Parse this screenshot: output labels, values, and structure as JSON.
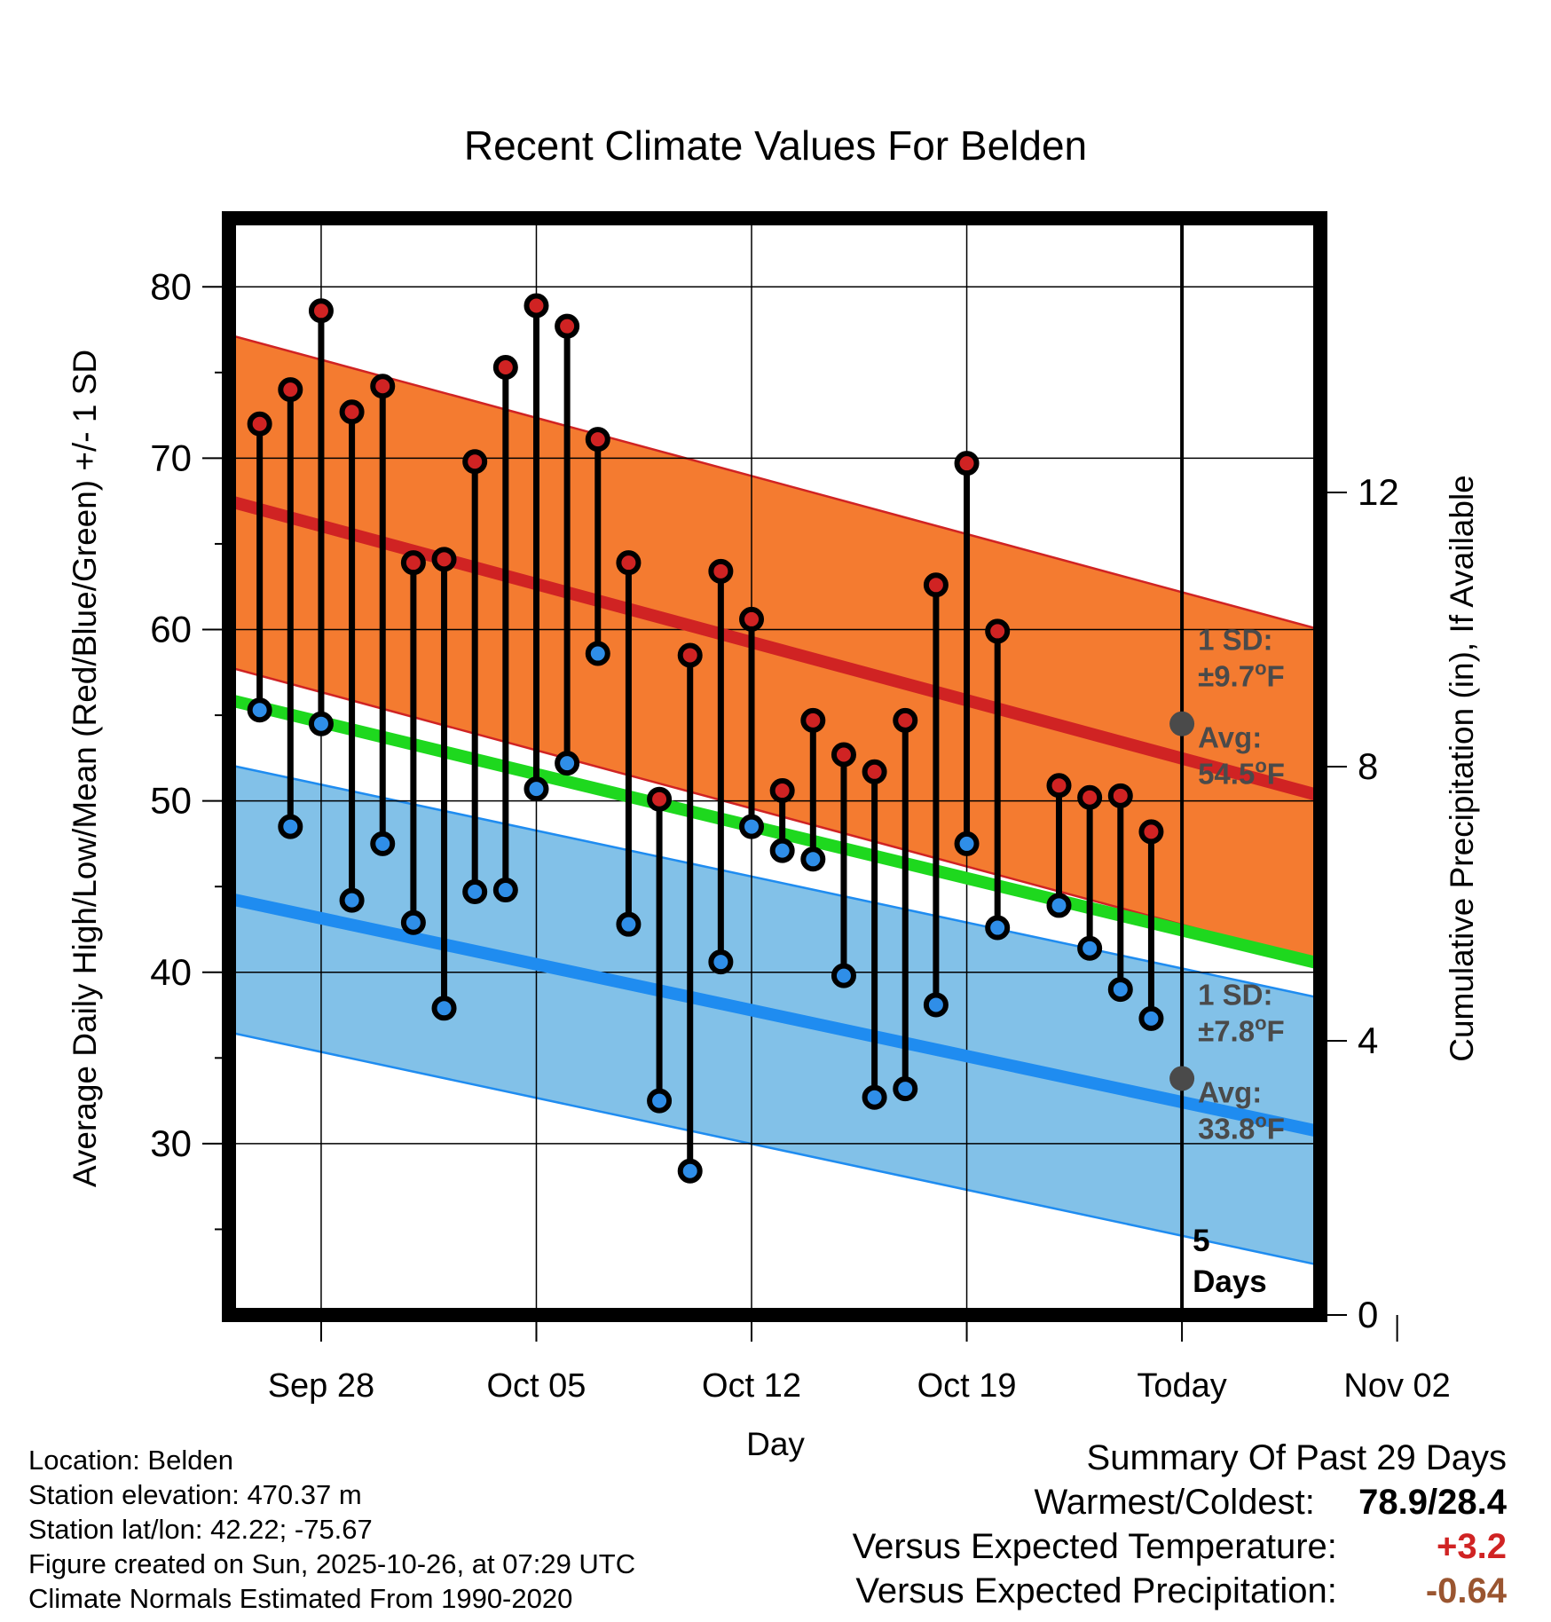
{
  "chart_data": {
    "type": "line",
    "title": "Recent Climate Values For Belden",
    "xlabel": "Day",
    "ylabel": "Average Daily High/Low/Mean (Red/Blue/Green) +/- 1 SD",
    "y2label": "Cumulative Precipitation (in), If Available",
    "xlim_days": [
      -31,
      4.5
    ],
    "ylim": [
      20,
      84
    ],
    "y2lim": [
      0,
      16
    ],
    "yticks": [
      30,
      40,
      50,
      60,
      70,
      80
    ],
    "y2ticks": [
      0,
      4,
      8,
      12
    ],
    "xticks": [
      {
        "day": -28,
        "label": "Sep 28"
      },
      {
        "day": -21,
        "label": "Oct 05"
      },
      {
        "day": -14,
        "label": "Oct 12"
      },
      {
        "day": -7,
        "label": "Oct 19"
      },
      {
        "day": 0,
        "label": "Today"
      },
      {
        "day": 7,
        "label": "Nov 02"
      }
    ],
    "today_label": [
      "5",
      "Days"
    ],
    "normals": {
      "high_avg": {
        "start": 67.5,
        "end": 50.3
      },
      "high_sd": 9.7,
      "low_avg": {
        "start": 44.3,
        "end": 30.7
      },
      "low_sd": 7.8,
      "mean_avg": {
        "start": 55.9,
        "end": 40.5
      }
    },
    "annotations": {
      "high": {
        "sd_label": "1 SD:",
        "sd_value": "±9.7",
        "avg_label": "Avg:",
        "avg_value": "54.5",
        "unit": "F",
        "avg": 54.5
      },
      "low": {
        "sd_label": "1 SD:",
        "sd_value": "±7.8",
        "avg_label": "Avg:",
        "avg_value": "33.8",
        "unit": "F",
        "avg": 33.8
      }
    },
    "observations": [
      {
        "day": -30,
        "high": 72.0,
        "low": 55.3
      },
      {
        "day": -29,
        "high": 74.0,
        "low": 48.5
      },
      {
        "day": -28,
        "high": 78.6,
        "low": 54.5
      },
      {
        "day": -27,
        "high": 72.7,
        "low": 44.2
      },
      {
        "day": -26,
        "high": 74.2,
        "low": 47.5
      },
      {
        "day": -25,
        "high": 63.9,
        "low": 42.9
      },
      {
        "day": -24,
        "high": 64.1,
        "low": 37.9
      },
      {
        "day": -23,
        "high": 69.8,
        "low": 44.7
      },
      {
        "day": -22,
        "high": 75.3,
        "low": 44.8
      },
      {
        "day": -21,
        "high": 78.9,
        "low": 50.7
      },
      {
        "day": -20,
        "high": 77.7,
        "low": 52.2
      },
      {
        "day": -19,
        "high": 71.1,
        "low": 58.6
      },
      {
        "day": -18,
        "high": 63.9,
        "low": 42.8
      },
      {
        "day": -17,
        "high": 50.1,
        "low": 32.5
      },
      {
        "day": -16,
        "high": 58.5,
        "low": 28.4
      },
      {
        "day": -15,
        "high": 63.4,
        "low": 40.6
      },
      {
        "day": -14,
        "high": 60.6,
        "low": 48.5
      },
      {
        "day": -13,
        "high": 50.6,
        "low": 47.1
      },
      {
        "day": -12,
        "high": 54.7,
        "low": 46.6
      },
      {
        "day": -11,
        "high": 52.7,
        "low": 39.8
      },
      {
        "day": -10,
        "high": 51.7,
        "low": 32.7
      },
      {
        "day": -9,
        "high": 54.7,
        "low": 33.2
      },
      {
        "day": -8,
        "high": 62.6,
        "low": 38.1
      },
      {
        "day": -7,
        "high": 69.7,
        "low": 47.5
      },
      {
        "day": -6,
        "high": 59.9,
        "low": 42.6
      },
      {
        "day": -4,
        "high": 50.9,
        "low": 43.9
      },
      {
        "day": -3,
        "high": 50.2,
        "low": 41.4
      },
      {
        "day": -2,
        "high": 50.3,
        "low": 39.0
      },
      {
        "day": -1,
        "high": 48.2,
        "low": 37.3
      }
    ],
    "colors": {
      "high_band": "#f47b30",
      "high_line": "#d02323",
      "low_band": "#82c1e8",
      "low_line": "#1f8cf0",
      "mean_line": "#1ed81e",
      "high_dot": "#d02323",
      "low_dot": "#2f8ee8",
      "annotation": "#4a4a4a",
      "precip": "#9a5530"
    }
  },
  "footer": {
    "location": "Location: Belden",
    "elevation": "Station elevation: 470.37 m",
    "latlon": "Station lat/lon: 42.22; -75.67",
    "created": "Figure created on Sun, 2025-10-26, at 07:29 UTC",
    "normals": "Climate Normals Estimated From 1990-2020"
  },
  "summary": {
    "title": "Summary Of Past 29 Days",
    "warmest_coldest_label": "Warmest/Coldest:",
    "warmest_coldest_value": "78.9/28.4",
    "temp_label": "Versus Expected Temperature:",
    "temp_value": "+3.2",
    "precip_label": "Versus Expected Precipitation:",
    "precip_value": "-0.64",
    "temp_color": "#d02323",
    "precip_color": "#9a5530"
  }
}
